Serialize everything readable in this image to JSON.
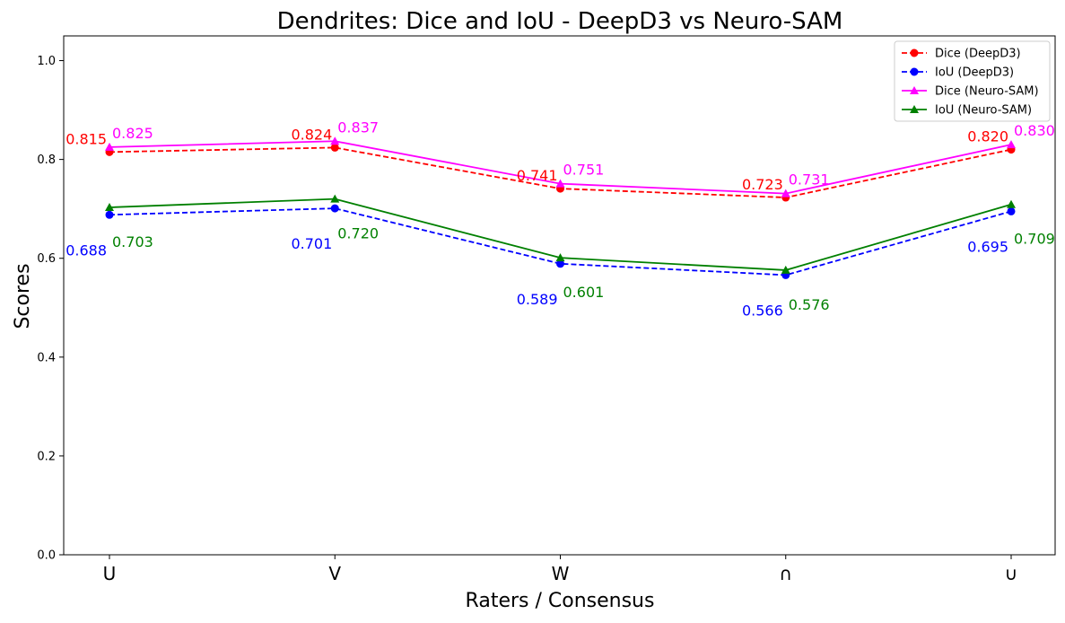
{
  "chart_data": {
    "type": "line",
    "title": "Dendrites: Dice and IoU - DeepD3 vs Neuro-SAM",
    "xlabel": "Raters / Consensus",
    "ylabel": "Scores",
    "categories": [
      "U",
      "V",
      "W",
      "∩",
      "∪"
    ],
    "ylim": [
      0.0,
      1.05
    ],
    "yticks": [
      "0.0",
      "0.2",
      "0.4",
      "0.6",
      "0.8",
      "1.0"
    ],
    "grid": false,
    "legend_position": "top-right",
    "series": [
      {
        "name": "Dice (DeepD3)",
        "values": [
          0.815,
          0.824,
          0.741,
          0.723,
          0.82
        ],
        "labels": [
          "0.815",
          "0.824",
          "0.741",
          "0.723",
          "0.820"
        ],
        "color": "#ff0000",
        "marker": "circle",
        "dashed": true
      },
      {
        "name": "IoU (DeepD3)",
        "values": [
          0.688,
          0.701,
          0.589,
          0.566,
          0.695
        ],
        "labels": [
          "0.688",
          "0.701",
          "0.589",
          "0.566",
          "0.695"
        ],
        "color": "#0000ff",
        "marker": "circle",
        "dashed": true
      },
      {
        "name": "Dice (Neuro-SAM)",
        "values": [
          0.825,
          0.837,
          0.751,
          0.731,
          0.83
        ],
        "labels": [
          "0.825",
          "0.837",
          "0.751",
          "0.731",
          "0.830"
        ],
        "color": "#ff00ff",
        "marker": "triangle",
        "dashed": false
      },
      {
        "name": "IoU (Neuro-SAM)",
        "values": [
          0.703,
          0.72,
          0.601,
          0.576,
          0.709
        ],
        "labels": [
          "0.703",
          "0.720",
          "0.601",
          "0.576",
          "0.709"
        ],
        "color": "#008000",
        "marker": "triangle",
        "dashed": false
      }
    ]
  }
}
